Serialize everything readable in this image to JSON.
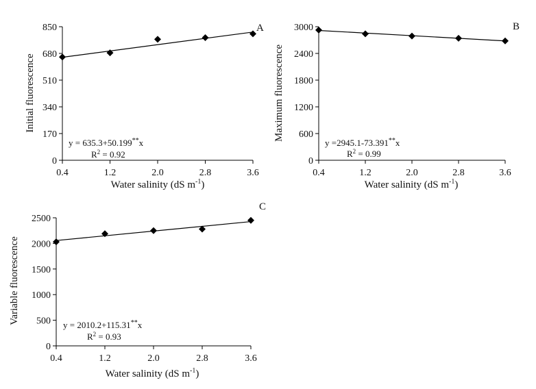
{
  "chart_data": [
    {
      "type": "scatter",
      "panel_label": "A",
      "xlabel": "Water salinity (dS m",
      "xlabel_sup": "-1",
      "xlabel_close": ")",
      "ylabel": "Initial fluorescence",
      "x_ticks": [
        "0.4",
        "1.2",
        "2.0",
        "2.8",
        "3.6"
      ],
      "y_ticks": [
        "0",
        "170",
        "340",
        "510",
        "680",
        "850"
      ],
      "xlim": [
        0.4,
        3.6
      ],
      "ylim": [
        0,
        850
      ],
      "series": [
        {
          "x": [
            0.4,
            1.2,
            2.0,
            2.8,
            3.6
          ],
          "values": [
            657,
            684,
            770,
            780,
            805
          ],
          "marker": "diamond"
        }
      ],
      "fit": {
        "intercept": 635.3,
        "slope": 50.199
      },
      "equation": {
        "prefix": "y = 635.3+50.199",
        "sup": "**",
        "suffix": "x"
      },
      "r2": {
        "label": "R",
        "sup": "2",
        "value": " = 0.92"
      },
      "colors": {
        "marker": "#000000",
        "line": "#000000"
      }
    },
    {
      "type": "scatter",
      "panel_label": "B",
      "xlabel": "Water salinity (dS m",
      "xlabel_sup": "-1",
      "xlabel_close": ")",
      "ylabel": "Maximum fluorescence",
      "x_ticks": [
        "0.4",
        "1.2",
        "2.0",
        "2.8",
        "3.6"
      ],
      "y_ticks": [
        "0",
        "600",
        "1200",
        "1800",
        "2400",
        "3000"
      ],
      "xlim": [
        0.4,
        3.6
      ],
      "ylim": [
        0,
        3000
      ],
      "series": [
        {
          "x": [
            0.4,
            1.2,
            2.0,
            2.8,
            3.6
          ],
          "values": [
            2925,
            2840,
            2790,
            2740,
            2680
          ],
          "marker": "diamond"
        }
      ],
      "fit": {
        "intercept": 2945.1,
        "slope": -73.391
      },
      "equation": {
        "prefix": "y =2945.1-73.391",
        "sup": "**",
        "suffix": "x"
      },
      "r2": {
        "label": "R",
        "sup": "2",
        "value": " = 0.99"
      },
      "colors": {
        "marker": "#000000",
        "line": "#000000"
      }
    },
    {
      "type": "scatter",
      "panel_label": "C",
      "xlabel": "Water salinity (dS m",
      "xlabel_sup": "-1",
      "xlabel_close": ")",
      "ylabel": "Variable fluorescence",
      "x_ticks": [
        "0.4",
        "1.2",
        "2.0",
        "2.8",
        "3.6"
      ],
      "y_ticks": [
        "0",
        "500",
        "1000",
        "1500",
        "2000",
        "2500"
      ],
      "xlim": [
        0.4,
        3.6
      ],
      "ylim": [
        0,
        2500
      ],
      "series": [
        {
          "x": [
            0.4,
            1.2,
            2.0,
            2.8,
            3.6
          ],
          "values": [
            2030,
            2190,
            2250,
            2280,
            2450
          ],
          "marker": "diamond"
        }
      ],
      "fit": {
        "intercept": 2010.2,
        "slope": 115.31
      },
      "equation": {
        "prefix": "y = 2010.2+115.31",
        "sup": "**",
        "suffix": "x"
      },
      "r2": {
        "label": "R",
        "sup": "2",
        "value": " = 0.93"
      },
      "colors": {
        "marker": "#000000",
        "line": "#000000"
      }
    }
  ]
}
